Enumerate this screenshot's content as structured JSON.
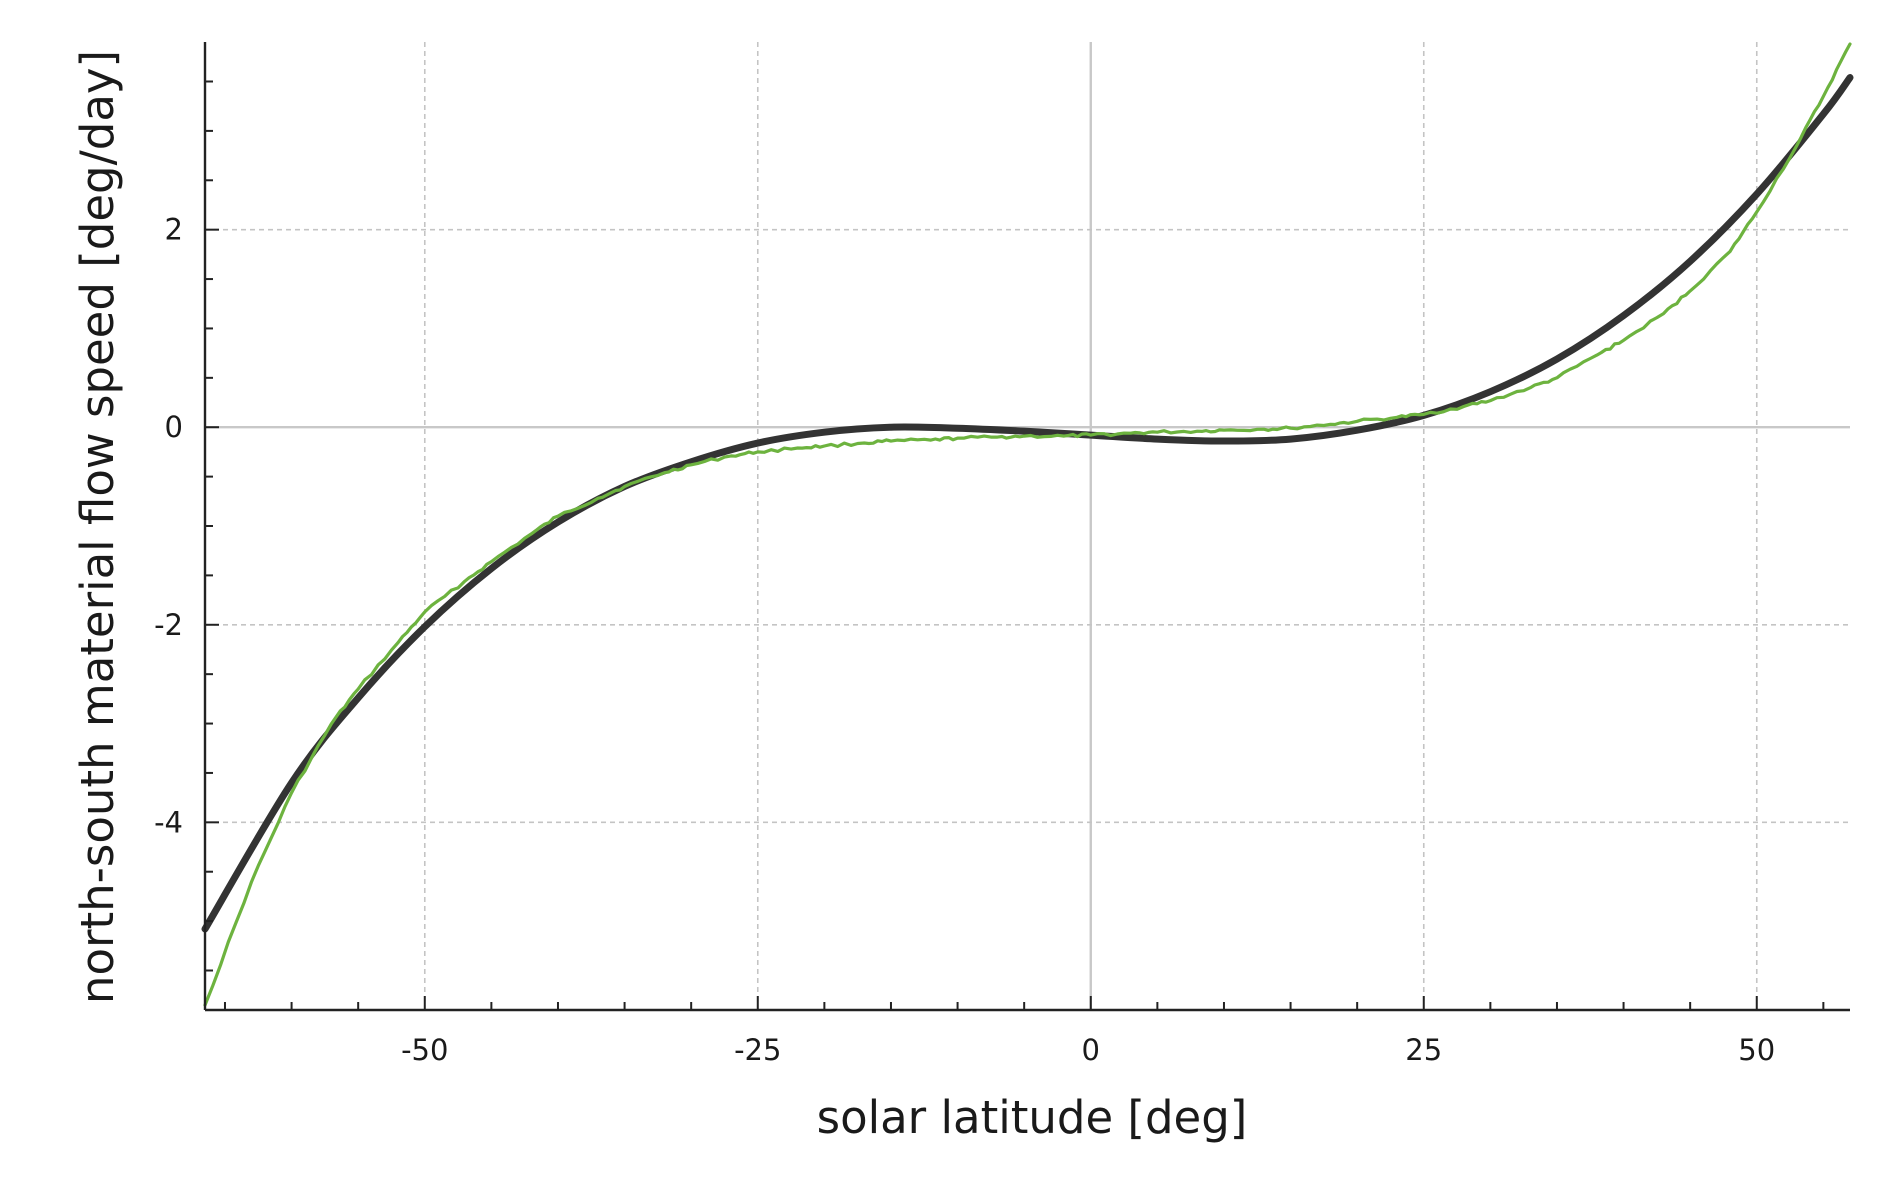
{
  "chart_data": {
    "type": "line",
    "title": "",
    "xlabel": "solar latitude [deg]",
    "ylabel": "north-south material flow speed [deg/day]",
    "xlim": [
      -66.5,
      57
    ],
    "ylim": [
      -5.9,
      3.9
    ],
    "x_ticks": [
      -50,
      -25,
      0,
      25,
      50
    ],
    "y_ticks": [
      -4,
      -2,
      0,
      2
    ],
    "x_tick_labels": [
      "-50",
      "-25",
      "0",
      "25",
      "50"
    ],
    "y_tick_labels": [
      "-4",
      "-2",
      "0",
      "2"
    ],
    "grid": true,
    "legend": "none",
    "series": [
      {
        "style": "thick-smooth",
        "color": "#333333",
        "x": [
          -66.5,
          -60,
          -55,
          -50,
          -45,
          -40,
          -35,
          -30,
          -25,
          -20,
          -15,
          -10,
          -5,
          0,
          5,
          10,
          15,
          20,
          25,
          30,
          35,
          40,
          45,
          50,
          55,
          57
        ],
        "y": [
          -5.08,
          -3.6,
          -2.74,
          -2.02,
          -1.43,
          -0.96,
          -0.6,
          -0.35,
          -0.16,
          -0.05,
          0.0,
          -0.01,
          -0.04,
          -0.08,
          -0.12,
          -0.14,
          -0.12,
          -0.03,
          0.12,
          0.36,
          0.69,
          1.13,
          1.68,
          2.36,
          3.17,
          3.54
        ]
      },
      {
        "style": "thin-noisy",
        "color": "#6db33f",
        "x": [
          -66.5,
          -63,
          -60,
          -57,
          -55,
          -52,
          -50,
          -47,
          -45,
          -42,
          -40,
          -37,
          -35,
          -32,
          -30,
          -27,
          -25,
          -22,
          -20,
          -17,
          -15,
          -12,
          -10,
          -7,
          -5,
          -2,
          0,
          3,
          5,
          8,
          10,
          13,
          15,
          18,
          20,
          23,
          25,
          28,
          30,
          33,
          35,
          38,
          40,
          43,
          45,
          48,
          50,
          53,
          55,
          57
        ],
        "y": [
          -5.85,
          -4.6,
          -3.7,
          -3.0,
          -2.65,
          -2.18,
          -1.87,
          -1.56,
          -1.36,
          -1.08,
          -0.9,
          -0.72,
          -0.6,
          -0.46,
          -0.38,
          -0.29,
          -0.25,
          -0.21,
          -0.19,
          -0.16,
          -0.14,
          -0.13,
          -0.11,
          -0.1,
          -0.09,
          -0.09,
          -0.08,
          -0.06,
          -0.05,
          -0.04,
          -0.03,
          -0.02,
          -0.01,
          0.03,
          0.06,
          0.1,
          0.13,
          0.21,
          0.27,
          0.4,
          0.5,
          0.73,
          0.88,
          1.15,
          1.38,
          1.78,
          2.18,
          2.85,
          3.35,
          3.88
        ]
      }
    ]
  }
}
